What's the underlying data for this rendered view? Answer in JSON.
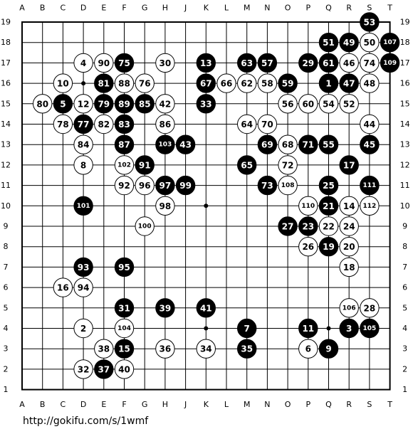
{
  "board": {
    "columns": [
      "A",
      "B",
      "C",
      "D",
      "E",
      "F",
      "G",
      "H",
      "J",
      "K",
      "L",
      "M",
      "N",
      "O",
      "P",
      "Q",
      "R",
      "S",
      "T"
    ],
    "rows": [
      "19",
      "18",
      "17",
      "16",
      "15",
      "14",
      "13",
      "12",
      "11",
      "10",
      "9",
      "8",
      "7",
      "6",
      "5",
      "4",
      "3",
      "2",
      "1"
    ],
    "star_points": [
      "D16",
      "K10",
      "K4",
      "Q4"
    ],
    "colors": {
      "line": "#000000",
      "black_stone": "#000000",
      "white_stone": "#ffffff",
      "background": "#ffffff"
    },
    "stones": [
      {
        "move": "1",
        "color": "black",
        "point": "Q16"
      },
      {
        "move": "2",
        "color": "white",
        "point": "D4"
      },
      {
        "move": "3",
        "color": "black",
        "point": "R4"
      },
      {
        "move": "4",
        "color": "white",
        "point": "D17"
      },
      {
        "move": "5",
        "color": "black",
        "point": "C15"
      },
      {
        "move": "6",
        "color": "white",
        "point": "P3"
      },
      {
        "move": "7",
        "color": "black",
        "point": "M4"
      },
      {
        "move": "8",
        "color": "white",
        "point": "D12"
      },
      {
        "move": "9",
        "color": "black",
        "point": "Q3"
      },
      {
        "move": "10",
        "color": "white",
        "point": "C16"
      },
      {
        "move": "11",
        "color": "black",
        "point": "P4"
      },
      {
        "move": "12",
        "color": "white",
        "point": "D15"
      },
      {
        "move": "13",
        "color": "black",
        "point": "K17"
      },
      {
        "move": "14",
        "color": "white",
        "point": "R10"
      },
      {
        "move": "15",
        "color": "black",
        "point": "F3"
      },
      {
        "move": "16",
        "color": "white",
        "point": "C6"
      },
      {
        "move": "17",
        "color": "black",
        "point": "R12"
      },
      {
        "move": "18",
        "color": "white",
        "point": "R7"
      },
      {
        "move": "19",
        "color": "black",
        "point": "Q8"
      },
      {
        "move": "20",
        "color": "white",
        "point": "R8"
      },
      {
        "move": "21",
        "color": "black",
        "point": "Q10"
      },
      {
        "move": "22",
        "color": "white",
        "point": "Q9"
      },
      {
        "move": "23",
        "color": "black",
        "point": "P9"
      },
      {
        "move": "24",
        "color": "white",
        "point": "R9"
      },
      {
        "move": "25",
        "color": "black",
        "point": "Q11"
      },
      {
        "move": "26",
        "color": "white",
        "point": "P8"
      },
      {
        "move": "27",
        "color": "black",
        "point": "O9"
      },
      {
        "move": "28",
        "color": "white",
        "point": "S5"
      },
      {
        "move": "29",
        "color": "black",
        "point": "P17"
      },
      {
        "move": "30",
        "color": "white",
        "point": "H17"
      },
      {
        "move": "31",
        "color": "black",
        "point": "F5"
      },
      {
        "move": "32",
        "color": "white",
        "point": "D2"
      },
      {
        "move": "33",
        "color": "black",
        "point": "K15"
      },
      {
        "move": "34",
        "color": "white",
        "point": "K3"
      },
      {
        "move": "35",
        "color": "black",
        "point": "M3"
      },
      {
        "move": "36",
        "color": "white",
        "point": "H3"
      },
      {
        "move": "37",
        "color": "black",
        "point": "E2"
      },
      {
        "move": "38",
        "color": "white",
        "point": "E3"
      },
      {
        "move": "39",
        "color": "black",
        "point": "H5"
      },
      {
        "move": "40",
        "color": "white",
        "point": "F2"
      },
      {
        "move": "41",
        "color": "black",
        "point": "K5"
      },
      {
        "move": "42",
        "color": "white",
        "point": "H15"
      },
      {
        "move": "43",
        "color": "black",
        "point": "J13"
      },
      {
        "move": "44",
        "color": "white",
        "point": "S14"
      },
      {
        "move": "45",
        "color": "black",
        "point": "S13"
      },
      {
        "move": "46",
        "color": "white",
        "point": "R17"
      },
      {
        "move": "47",
        "color": "black",
        "point": "R16"
      },
      {
        "move": "48",
        "color": "white",
        "point": "S16"
      },
      {
        "move": "49",
        "color": "black",
        "point": "R18"
      },
      {
        "move": "50",
        "color": "white",
        "point": "S18"
      },
      {
        "move": "51",
        "color": "black",
        "point": "Q18"
      },
      {
        "move": "52",
        "color": "white",
        "point": "R15"
      },
      {
        "move": "53",
        "color": "black",
        "point": "S19"
      },
      {
        "move": "54",
        "color": "white",
        "point": "Q15"
      },
      {
        "move": "55",
        "color": "black",
        "point": "Q13"
      },
      {
        "move": "56",
        "color": "white",
        "point": "O15"
      },
      {
        "move": "57",
        "color": "black",
        "point": "N17"
      },
      {
        "move": "58",
        "color": "white",
        "point": "N16"
      },
      {
        "move": "59",
        "color": "black",
        "point": "O16"
      },
      {
        "move": "60",
        "color": "white",
        "point": "P15"
      },
      {
        "move": "61",
        "color": "black",
        "point": "Q17"
      },
      {
        "move": "62",
        "color": "white",
        "point": "M16"
      },
      {
        "move": "63",
        "color": "black",
        "point": "M17"
      },
      {
        "move": "64",
        "color": "white",
        "point": "M14"
      },
      {
        "move": "65",
        "color": "black",
        "point": "M12"
      },
      {
        "move": "66",
        "color": "white",
        "point": "L16"
      },
      {
        "move": "67",
        "color": "black",
        "point": "K16"
      },
      {
        "move": "68",
        "color": "white",
        "point": "O13"
      },
      {
        "move": "69",
        "color": "black",
        "point": "N13"
      },
      {
        "move": "70",
        "color": "white",
        "point": "N14"
      },
      {
        "move": "71",
        "color": "black",
        "point": "P13"
      },
      {
        "move": "72",
        "color": "white",
        "point": "O12"
      },
      {
        "move": "73",
        "color": "black",
        "point": "N11"
      },
      {
        "move": "74",
        "color": "white",
        "point": "S17"
      },
      {
        "move": "75",
        "color": "black",
        "point": "F17"
      },
      {
        "move": "76",
        "color": "white",
        "point": "G16"
      },
      {
        "move": "77",
        "color": "black",
        "point": "D14"
      },
      {
        "move": "78",
        "color": "white",
        "point": "C14"
      },
      {
        "move": "79",
        "color": "black",
        "point": "E15"
      },
      {
        "move": "80",
        "color": "white",
        "point": "B15"
      },
      {
        "move": "81",
        "color": "black",
        "point": "E16"
      },
      {
        "move": "82",
        "color": "white",
        "point": "E14"
      },
      {
        "move": "83",
        "color": "black",
        "point": "F14"
      },
      {
        "move": "84",
        "color": "white",
        "point": "D13"
      },
      {
        "move": "85",
        "color": "black",
        "point": "G15"
      },
      {
        "move": "86",
        "color": "white",
        "point": "H14"
      },
      {
        "move": "87",
        "color": "black",
        "point": "F13"
      },
      {
        "move": "88",
        "color": "white",
        "point": "F16"
      },
      {
        "move": "89",
        "color": "black",
        "point": "F15"
      },
      {
        "move": "90",
        "color": "white",
        "point": "E17"
      },
      {
        "move": "91",
        "color": "black",
        "point": "G12"
      },
      {
        "move": "92",
        "color": "white",
        "point": "F11"
      },
      {
        "move": "93",
        "color": "black",
        "point": "D7"
      },
      {
        "move": "94",
        "color": "white",
        "point": "D6"
      },
      {
        "move": "95",
        "color": "black",
        "point": "F7"
      },
      {
        "move": "96",
        "color": "white",
        "point": "G11"
      },
      {
        "move": "97",
        "color": "black",
        "point": "H11"
      },
      {
        "move": "98",
        "color": "white",
        "point": "H10"
      },
      {
        "move": "99",
        "color": "black",
        "point": "J11"
      },
      {
        "move": "100",
        "color": "white",
        "point": "G9"
      },
      {
        "move": "101",
        "color": "black",
        "point": "D10"
      },
      {
        "move": "102",
        "color": "white",
        "point": "F12"
      },
      {
        "move": "103",
        "color": "black",
        "point": "H13"
      },
      {
        "move": "104",
        "color": "white",
        "point": "F4"
      },
      {
        "move": "105",
        "color": "black",
        "point": "S4"
      },
      {
        "move": "106",
        "color": "white",
        "point": "R5"
      },
      {
        "move": "107",
        "color": "black",
        "point": "T18"
      },
      {
        "move": "108",
        "color": "white",
        "point": "O11"
      },
      {
        "move": "109",
        "color": "black",
        "point": "T17"
      },
      {
        "move": "110",
        "color": "white",
        "point": "P10"
      },
      {
        "move": "111",
        "color": "black",
        "point": "S11"
      },
      {
        "move": "112",
        "color": "white",
        "point": "S10"
      }
    ]
  },
  "footer": {
    "url": "http://gokifu.com/s/1wmf"
  }
}
